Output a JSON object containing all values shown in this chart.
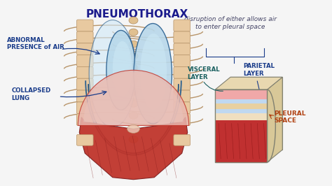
{
  "title": "PNEUMOTHORAX",
  "title_color": "#1a1a8c",
  "title_fontsize": 11,
  "title_weight": "bold",
  "bg_color": "#f5f5f5",
  "subtitle": "disruption of either allows air\nto enter pleural space",
  "subtitle_color": "#444466",
  "subtitle_fontsize": 6.5,
  "labels": {
    "abnormal": "ABNORMAL\nPRESENCE of AIR",
    "collapsed": "COLLAPSED\nLUNG",
    "visceral": "VISCERAL\nLAYER",
    "parietal": "PARIETAL\nLAYER",
    "pleural": "PLEURAL\nSPACE"
  },
  "label_color_blue": "#1a3c8a",
  "label_color_teal": "#1a6060",
  "label_color_red": "#c0392b",
  "lung_fill": "#b8d8ea",
  "lung_fill2": "#cde8f5",
  "lung_edge": "#2a6090",
  "rib_fill": "#e8c9a0",
  "rib_fill2": "#d4a870",
  "rib_edge": "#b8956a",
  "spine_fill": "#e0c090",
  "spine_edge": "#b8956a",
  "muscle_dark": "#c0352b",
  "muscle_mid": "#d4504a",
  "muscle_light": "#e8b0a8",
  "pleural_outline": "#1a5080",
  "box_pink": "#f0a0a0",
  "box_beige_light": "#f0dfc0",
  "box_beige_dark": "#d4b880",
  "box_blue_light": "#c0d8f0",
  "box_blue_dark": "#8090b0",
  "box_red": "#c03030",
  "box_edge": "#808070"
}
